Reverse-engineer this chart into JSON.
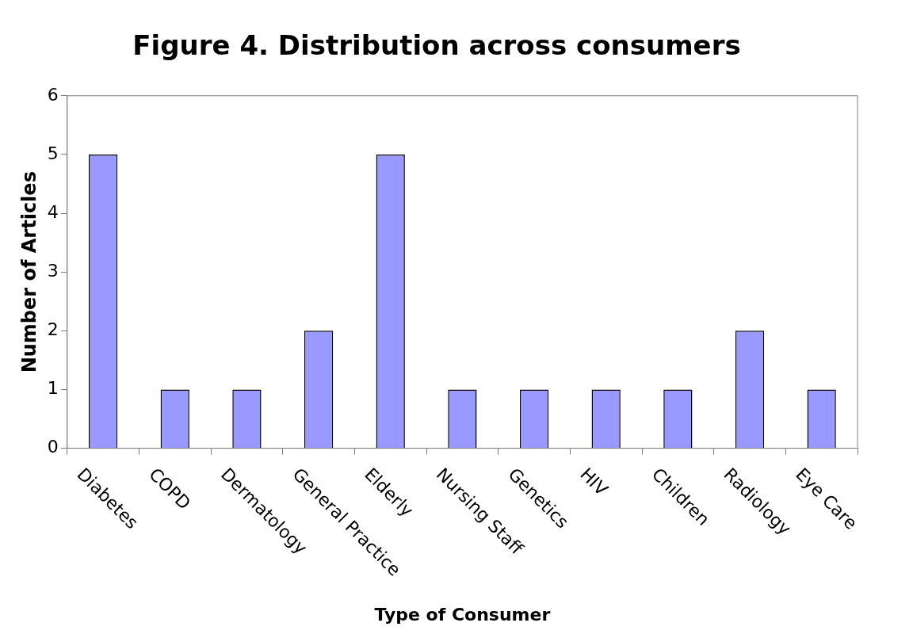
{
  "chart_data": {
    "type": "bar",
    "title": "Figure 4. Distribution across consumers",
    "xlabel": "Type of Consumer",
    "ylabel": "Number of Articles",
    "categories": [
      "Diabetes",
      "COPD",
      "Dermatology",
      "General Practice",
      "Elderly",
      "Nursing Staff",
      "Genetics",
      "HIV",
      "Children",
      "Radiology",
      "Eye Care"
    ],
    "values": [
      5,
      1,
      1,
      2,
      5,
      1,
      1,
      1,
      1,
      2,
      1
    ],
    "color": "#9999ff",
    "ylim": [
      0,
      6
    ],
    "yticks": [
      0,
      1,
      2,
      3,
      4,
      5,
      6
    ]
  }
}
